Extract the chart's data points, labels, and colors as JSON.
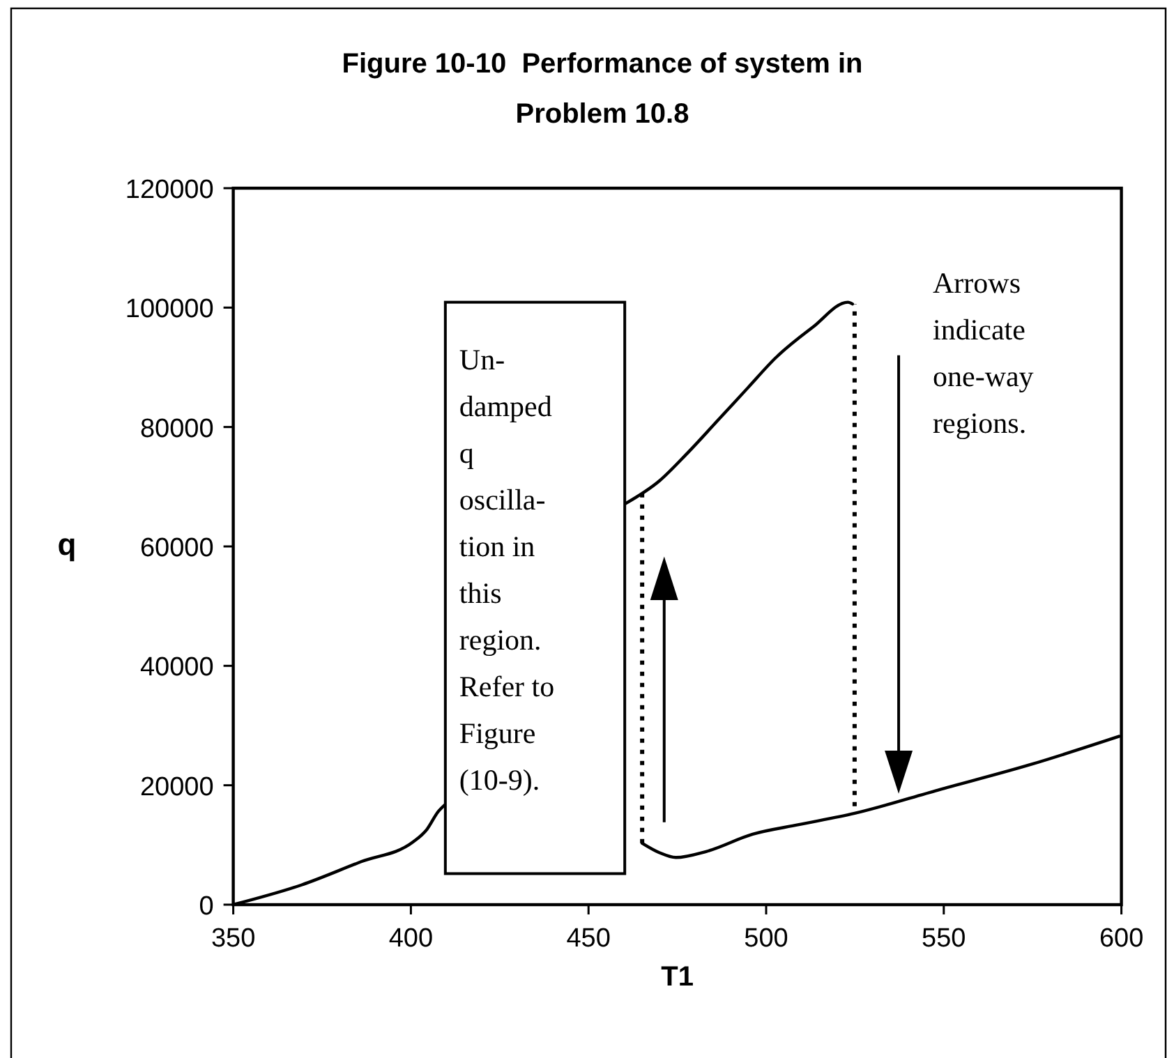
{
  "chart_data": {
    "type": "line",
    "title": "Figure 10-10  Performance of system in\nProblem 10.8",
    "xlabel": "T1",
    "ylabel": "q",
    "xlim": [
      350,
      600
    ],
    "xticks": [
      350,
      400,
      450,
      500,
      550,
      600
    ],
    "ylim": [
      0,
      120000
    ],
    "yticks": [
      0,
      20000,
      40000,
      60000,
      80000,
      100000,
      120000
    ],
    "grid": false,
    "marker": "none",
    "series": [
      {
        "color": "#000000",
        "x": [
          350,
          369.2,
          386,
          400.6,
          404.5,
          407.7,
          409.7
        ],
        "values": [
          0,
          3300,
          7200,
          10500,
          12600,
          15600,
          16800
        ]
      },
      {
        "color": "#000000",
        "x": [
          460.2,
          470,
          477.8,
          487,
          494.9,
          502.7,
          513.1,
          523,
          524.3
        ],
        "values": [
          67100,
          71000,
          75600,
          81500,
          86600,
          91600,
          96700,
          100900,
          100600
        ]
      },
      {
        "color": "#000000",
        "x": [
          465.1,
          470,
          474.6,
          483.1,
          496.2,
          509.2,
          524.9,
          548.4,
          574.6,
          599.4
        ],
        "values": [
          10300,
          8700,
          7900,
          8900,
          11800,
          13400,
          15300,
          19200,
          23500,
          28200
        ]
      },
      {
        "color": "#000000",
        "line_style": "dotted",
        "x": [
          465.1,
          465.1
        ],
        "values": [
          10300,
          69000
        ]
      },
      {
        "color": "#000000",
        "line_style": "dotted",
        "x": [
          524.9,
          524.9
        ],
        "values": [
          16500,
          100600
        ]
      }
    ],
    "annotations": [
      "Un-\ndamped\nq\noscilla-\ntion in\nthis\nregion.\nRefer to\nFigure\n(10-9).",
      "Arrows\nindicate\none-way\nregions."
    ]
  }
}
